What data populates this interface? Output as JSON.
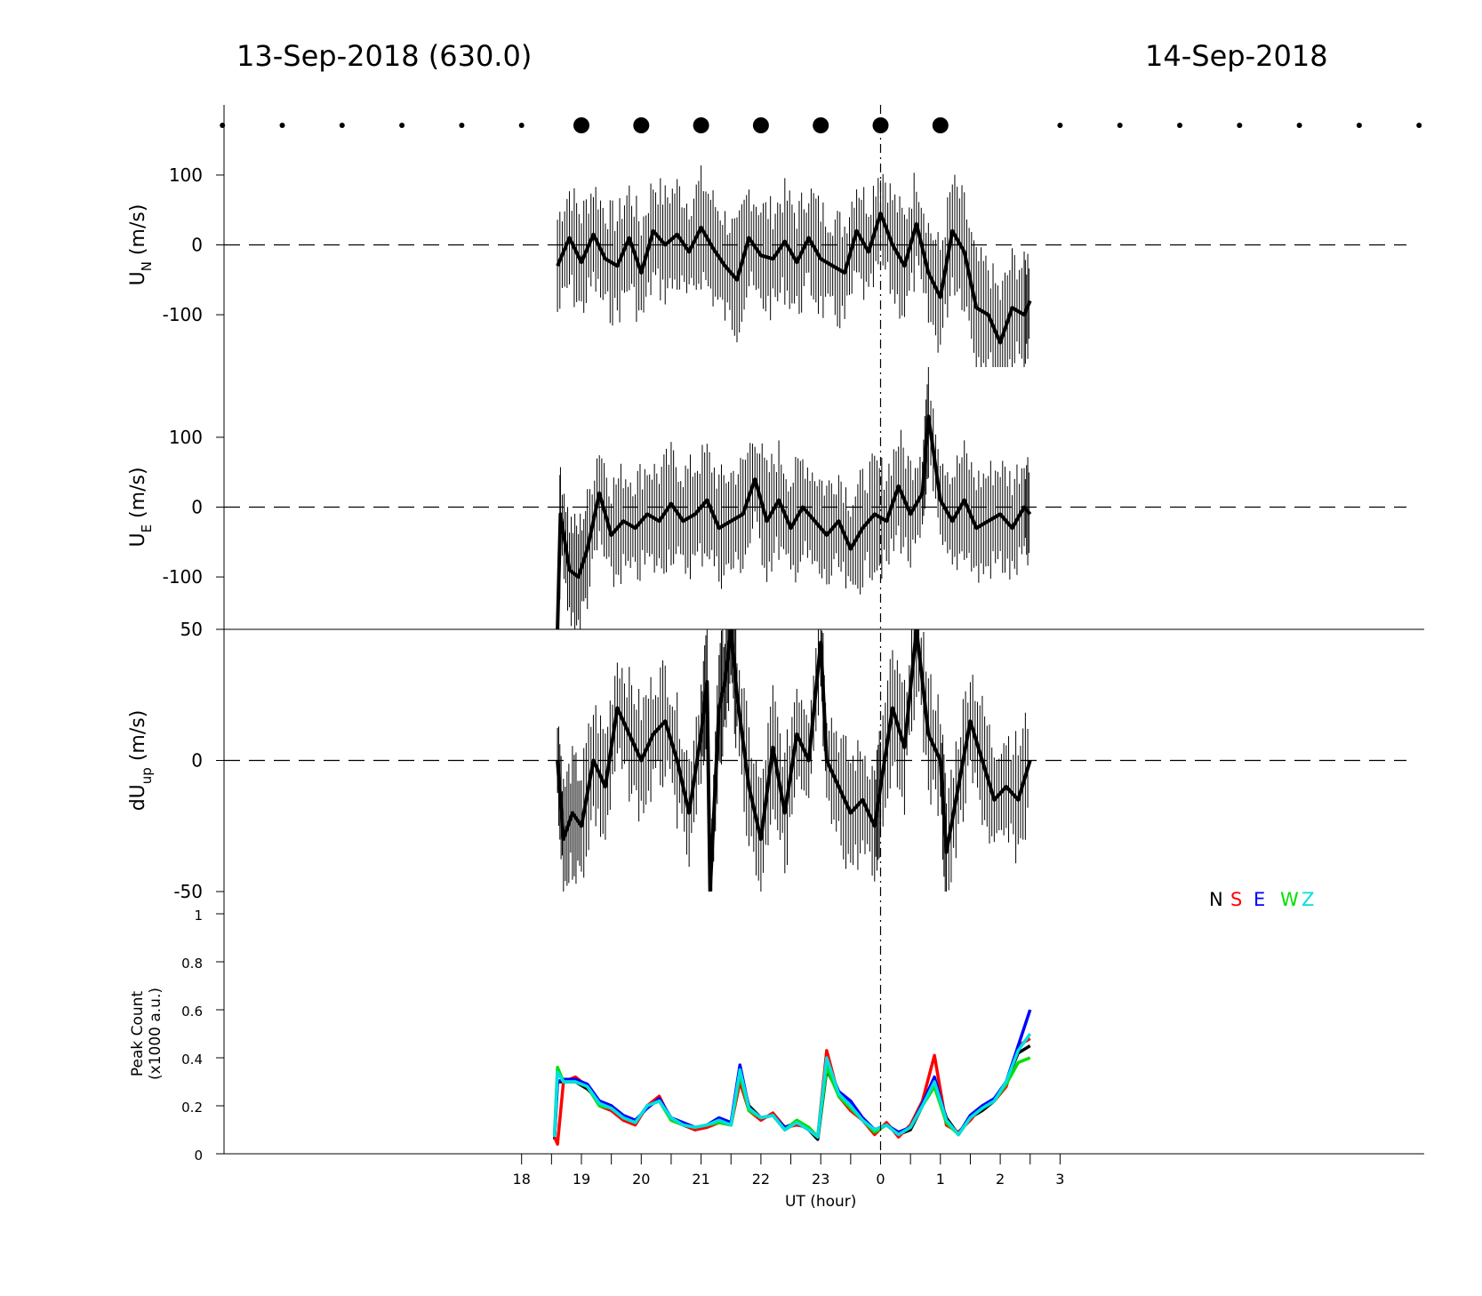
{
  "header": {
    "left": "13-Sep-2018 (630.0)",
    "right": "14-Sep-2018"
  },
  "chart_data": [
    {
      "type": "line",
      "panel": "U_N",
      "ylabel_main": "U",
      "ylabel_sub": "N",
      "ylabel_unit": " (m/s)",
      "ylim": [
        -175,
        175
      ],
      "yticks": [
        "100",
        "0",
        "-100"
      ],
      "ytick_values": [
        100,
        0,
        -100
      ],
      "zero_line": "dashed",
      "error_bars": true,
      "series": [
        {
          "color": "#000000",
          "x": [
            18.6,
            18.8,
            19.0,
            19.2,
            19.4,
            19.6,
            19.8,
            20.0,
            20.2,
            20.4,
            20.6,
            20.8,
            21.0,
            21.2,
            21.4,
            21.6,
            21.8,
            22.0,
            22.2,
            22.4,
            22.6,
            22.8,
            23.0,
            23.2,
            23.4,
            23.6,
            23.8,
            24.0,
            24.2,
            24.4,
            24.6,
            24.8,
            25.0,
            25.2,
            25.4,
            25.6,
            25.8,
            26.0,
            26.2,
            26.4,
            26.5
          ],
          "values": [
            -30,
            10,
            -25,
            15,
            -20,
            -30,
            10,
            -40,
            20,
            0,
            15,
            -10,
            25,
            -5,
            -30,
            -50,
            10,
            -15,
            -20,
            5,
            -25,
            10,
            -20,
            -30,
            -40,
            20,
            -10,
            45,
            0,
            -30,
            30,
            -40,
            -75,
            20,
            -10,
            -90,
            -100,
            -140,
            -90,
            -100,
            -80
          ]
        }
      ]
    },
    {
      "type": "line",
      "panel": "U_E",
      "ylabel_main": "U",
      "ylabel_sub": "E",
      "ylabel_unit": " (m/s)",
      "ylim": [
        -175,
        175
      ],
      "yticks": [
        "100",
        "0",
        "-100"
      ],
      "ytick_values": [
        100,
        0,
        -100
      ],
      "zero_line": "dashed",
      "error_bars": true,
      "series": [
        {
          "color": "#000000",
          "x": [
            18.6,
            18.65,
            18.8,
            18.95,
            19.1,
            19.3,
            19.5,
            19.7,
            19.9,
            20.1,
            20.3,
            20.5,
            20.7,
            20.9,
            21.1,
            21.3,
            21.5,
            21.7,
            21.9,
            22.1,
            22.3,
            22.5,
            22.7,
            22.9,
            23.1,
            23.3,
            23.5,
            23.7,
            23.9,
            24.1,
            24.3,
            24.5,
            24.7,
            24.8,
            25.0,
            25.2,
            25.4,
            25.6,
            25.8,
            26.0,
            26.2,
            26.4,
            26.5
          ],
          "values": [
            -175,
            -10,
            -90,
            -100,
            -60,
            20,
            -40,
            -20,
            -30,
            -10,
            -20,
            5,
            -20,
            -10,
            10,
            -30,
            -20,
            -10,
            40,
            -20,
            10,
            -30,
            0,
            -20,
            -40,
            -20,
            -60,
            -30,
            -10,
            -20,
            30,
            -10,
            20,
            130,
            10,
            -20,
            10,
            -30,
            -20,
            -10,
            -30,
            0,
            -10
          ]
        }
      ]
    },
    {
      "type": "line",
      "panel": "dU_up",
      "ylabel_main": "dU",
      "ylabel_sub": "up",
      "ylabel_unit": " (m/s)",
      "ylim": [
        -50,
        50
      ],
      "yticks": [
        "50",
        "0",
        "-50"
      ],
      "ytick_values": [
        50,
        0,
        -50
      ],
      "zero_line": "dashed",
      "error_bars": true,
      "series": [
        {
          "color": "#000000",
          "x": [
            18.6,
            18.7,
            18.85,
            19.0,
            19.2,
            19.4,
            19.6,
            19.8,
            20.0,
            20.2,
            20.4,
            20.6,
            20.8,
            21.0,
            21.1,
            21.15,
            21.3,
            21.4,
            21.5,
            21.6,
            21.8,
            22.0,
            22.2,
            22.4,
            22.6,
            22.8,
            23.0,
            23.1,
            23.3,
            23.5,
            23.7,
            23.9,
            24.0,
            24.2,
            24.4,
            24.6,
            24.8,
            25.0,
            25.1,
            25.3,
            25.5,
            25.7,
            25.9,
            26.1,
            26.3,
            26.5
          ],
          "values": [
            0,
            -30,
            -20,
            -25,
            0,
            -10,
            20,
            10,
            0,
            10,
            15,
            0,
            -20,
            10,
            30,
            -50,
            20,
            30,
            50,
            25,
            -10,
            -30,
            5,
            -20,
            10,
            0,
            45,
            0,
            -10,
            -20,
            -15,
            -25,
            -10,
            20,
            5,
            50,
            10,
            0,
            -35,
            -10,
            15,
            0,
            -15,
            -10,
            -15,
            0
          ]
        }
      ]
    },
    {
      "type": "line",
      "panel": "peak_count",
      "ylabel_line1": "Peak Count",
      "ylabel_line2": "(x1000 a.u.)",
      "ylim": [
        0,
        1
      ],
      "yticks": [
        "1",
        "0.8",
        "0.6",
        "0.4",
        "0.2",
        "0"
      ],
      "ytick_values": [
        1,
        0.8,
        0.6,
        0.4,
        0.2,
        0
      ],
      "xlabel": "UT (hour)",
      "xticks": [
        "18",
        "19",
        "20",
        "21",
        "22",
        "23",
        "0",
        "1",
        "2",
        "3"
      ],
      "xtick_values": [
        18,
        19,
        20,
        21,
        22,
        23,
        24,
        25,
        26,
        27
      ],
      "legend": {
        "labels": [
          "N",
          "S",
          "E",
          "W",
          "Z"
        ],
        "colors": [
          "#000000",
          "#ff0000",
          "#0000ff",
          "#00e000",
          "#00e0e0"
        ],
        "placement": "top-right"
      },
      "x": [
        18.55,
        18.6,
        18.7,
        18.9,
        19.1,
        19.3,
        19.5,
        19.7,
        19.9,
        20.1,
        20.3,
        20.5,
        20.7,
        20.9,
        21.1,
        21.3,
        21.5,
        21.65,
        21.8,
        22.0,
        22.2,
        22.4,
        22.6,
        22.8,
        22.95,
        23.1,
        23.3,
        23.5,
        23.7,
        23.9,
        24.1,
        24.3,
        24.5,
        24.7,
        24.9,
        25.1,
        25.3,
        25.5,
        25.7,
        25.9,
        26.1,
        26.3,
        26.5
      ],
      "series": [
        {
          "name": "N",
          "color": "#000000",
          "values": [
            0.06,
            0.3,
            0.3,
            0.3,
            0.27,
            0.22,
            0.2,
            0.15,
            0.13,
            0.2,
            0.22,
            0.15,
            0.12,
            0.1,
            0.12,
            0.14,
            0.12,
            0.34,
            0.2,
            0.15,
            0.16,
            0.1,
            0.13,
            0.1,
            0.06,
            0.35,
            0.25,
            0.2,
            0.14,
            0.1,
            0.12,
            0.08,
            0.1,
            0.2,
            0.3,
            0.15,
            0.08,
            0.15,
            0.18,
            0.22,
            0.3,
            0.42,
            0.45
          ]
        },
        {
          "name": "S",
          "color": "#ff0000",
          "values": [
            0.07,
            0.04,
            0.3,
            0.32,
            0.28,
            0.2,
            0.18,
            0.14,
            0.12,
            0.2,
            0.24,
            0.14,
            0.12,
            0.1,
            0.11,
            0.13,
            0.12,
            0.3,
            0.18,
            0.14,
            0.17,
            0.11,
            0.12,
            0.11,
            0.07,
            0.43,
            0.24,
            0.18,
            0.14,
            0.08,
            0.13,
            0.07,
            0.12,
            0.22,
            0.41,
            0.12,
            0.09,
            0.14,
            0.2,
            0.22,
            0.28,
            0.45,
            0.48
          ]
        },
        {
          "name": "E",
          "color": "#0000ff",
          "values": [
            0.07,
            0.3,
            0.31,
            0.31,
            0.29,
            0.22,
            0.2,
            0.16,
            0.14,
            0.19,
            0.23,
            0.15,
            0.13,
            0.11,
            0.12,
            0.15,
            0.13,
            0.37,
            0.19,
            0.15,
            0.16,
            0.11,
            0.13,
            0.1,
            0.07,
            0.38,
            0.26,
            0.22,
            0.15,
            0.1,
            0.12,
            0.09,
            0.11,
            0.21,
            0.32,
            0.14,
            0.08,
            0.16,
            0.2,
            0.23,
            0.3,
            0.45,
            0.6
          ]
        },
        {
          "name": "W",
          "color": "#00e000",
          "values": [
            0.08,
            0.36,
            0.3,
            0.3,
            0.28,
            0.2,
            0.19,
            0.15,
            0.13,
            0.2,
            0.22,
            0.14,
            0.12,
            0.11,
            0.12,
            0.13,
            0.12,
            0.33,
            0.18,
            0.15,
            0.16,
            0.1,
            0.14,
            0.11,
            0.07,
            0.36,
            0.24,
            0.19,
            0.14,
            0.09,
            0.12,
            0.08,
            0.11,
            0.2,
            0.28,
            0.13,
            0.08,
            0.15,
            0.19,
            0.22,
            0.29,
            0.38,
            0.4
          ]
        },
        {
          "name": "Z",
          "color": "#00e0e0",
          "values": [
            0.07,
            0.34,
            0.3,
            0.3,
            0.28,
            0.21,
            0.19,
            0.15,
            0.13,
            0.2,
            0.22,
            0.15,
            0.12,
            0.11,
            0.12,
            0.14,
            0.12,
            0.35,
            0.19,
            0.15,
            0.16,
            0.1,
            0.13,
            0.1,
            0.07,
            0.4,
            0.25,
            0.2,
            0.14,
            0.1,
            0.12,
            0.08,
            0.11,
            0.2,
            0.3,
            0.14,
            0.08,
            0.15,
            0.19,
            0.22,
            0.3,
            0.43,
            0.5
          ]
        }
      ]
    }
  ],
  "sky_markers": {
    "x_small": [
      13,
      14,
      15,
      16,
      17,
      18,
      27,
      28,
      29,
      30,
      31,
      32,
      33
    ],
    "x_large": [
      19,
      20,
      21,
      22,
      23,
      24,
      25
    ]
  },
  "midnight_marker_x": 24
}
